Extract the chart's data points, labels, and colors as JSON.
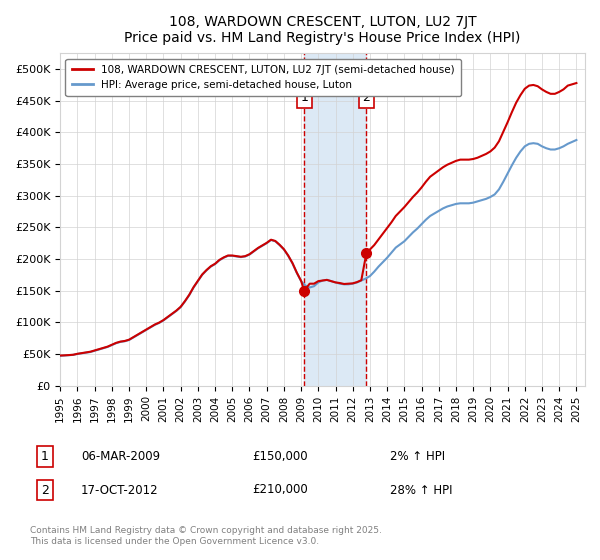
{
  "title": "108, WARDOWN CRESCENT, LUTON, LU2 7JT",
  "subtitle": "Price paid vs. HM Land Registry's House Price Index (HPI)",
  "legend_line1": "108, WARDOWN CRESCENT, LUTON, LU2 7JT (semi-detached house)",
  "legend_line2": "HPI: Average price, semi-detached house, Luton",
  "footer": "Contains HM Land Registry data © Crown copyright and database right 2025.\nThis data is licensed under the Open Government Licence v3.0.",
  "ylabel_ticks": [
    "£0",
    "£50K",
    "£100K",
    "£150K",
    "£200K",
    "£250K",
    "£300K",
    "£350K",
    "£400K",
    "£450K",
    "£500K"
  ],
  "ytick_values": [
    0,
    50000,
    100000,
    150000,
    200000,
    250000,
    300000,
    350000,
    400000,
    450000,
    500000
  ],
  "ylim": [
    0,
    525000
  ],
  "sale1_date": 2009.18,
  "sale1_price": 150000,
  "sale1_label": "1",
  "sale1_annotation": "06-MAR-2009",
  "sale1_price_str": "£150,000",
  "sale1_hpi": "2% ↑ HPI",
  "sale2_date": 2012.8,
  "sale2_price": 210000,
  "sale2_label": "2",
  "sale2_annotation": "17-OCT-2012",
  "sale2_price_str": "£210,000",
  "sale2_hpi": "28% ↑ HPI",
  "color_red": "#cc0000",
  "color_blue": "#6699cc",
  "color_shade": "#dce9f5",
  "xtick_years": [
    "1995",
    "1996",
    "1997",
    "1998",
    "1999",
    "2000",
    "2001",
    "2002",
    "2003",
    "2004",
    "2005",
    "2006",
    "2007",
    "2008",
    "2009",
    "2010",
    "2011",
    "2012",
    "2013",
    "2014",
    "2015",
    "2016",
    "2017",
    "2018",
    "2019",
    "2020",
    "2021",
    "2022",
    "2023",
    "2024",
    "2025"
  ],
  "hpi_years": [
    1995.0,
    1995.25,
    1995.5,
    1995.75,
    1996.0,
    1996.25,
    1996.5,
    1996.75,
    1997.0,
    1997.25,
    1997.5,
    1997.75,
    1998.0,
    1998.25,
    1998.5,
    1998.75,
    1999.0,
    1999.25,
    1999.5,
    1999.75,
    2000.0,
    2000.25,
    2000.5,
    2000.75,
    2001.0,
    2001.25,
    2001.5,
    2001.75,
    2002.0,
    2002.25,
    2002.5,
    2002.75,
    2003.0,
    2003.25,
    2003.5,
    2003.75,
    2004.0,
    2004.25,
    2004.5,
    2004.75,
    2005.0,
    2005.25,
    2005.5,
    2005.75,
    2006.0,
    2006.25,
    2006.5,
    2006.75,
    2007.0,
    2007.25,
    2007.5,
    2007.75,
    2008.0,
    2008.25,
    2008.5,
    2008.75,
    2009.0,
    2009.25,
    2009.5,
    2009.75,
    2010.0,
    2010.25,
    2010.5,
    2010.75,
    2011.0,
    2011.25,
    2011.5,
    2011.75,
    2012.0,
    2012.25,
    2012.5,
    2012.75,
    2013.0,
    2013.25,
    2013.5,
    2013.75,
    2014.0,
    2014.25,
    2014.5,
    2014.75,
    2015.0,
    2015.25,
    2015.5,
    2015.75,
    2016.0,
    2016.25,
    2016.5,
    2016.75,
    2017.0,
    2017.25,
    2017.5,
    2017.75,
    2018.0,
    2018.25,
    2018.5,
    2018.75,
    2019.0,
    2019.25,
    2019.5,
    2019.75,
    2020.0,
    2020.25,
    2020.5,
    2020.75,
    2021.0,
    2021.25,
    2021.5,
    2021.75,
    2022.0,
    2022.25,
    2022.5,
    2022.75,
    2023.0,
    2023.25,
    2023.5,
    2023.75,
    2024.0,
    2024.25,
    2024.5,
    2024.75,
    2025.0
  ],
  "hpi_values": [
    47000,
    47500,
    48000,
    48500,
    50000,
    51000,
    52000,
    53000,
    55000,
    57000,
    59000,
    61000,
    64000,
    67000,
    69000,
    70000,
    72000,
    76000,
    80000,
    84000,
    88000,
    92000,
    96000,
    99000,
    103000,
    108000,
    113000,
    118000,
    124000,
    133000,
    143000,
    155000,
    165000,
    175000,
    182000,
    188000,
    192000,
    198000,
    202000,
    205000,
    205000,
    204000,
    203000,
    204000,
    207000,
    212000,
    217000,
    221000,
    225000,
    230000,
    228000,
    222000,
    215000,
    205000,
    193000,
    178000,
    165000,
    158000,
    155000,
    157000,
    163000,
    166000,
    167000,
    165000,
    163000,
    161000,
    160000,
    160000,
    161000,
    163000,
    166000,
    169000,
    173000,
    180000,
    188000,
    195000,
    202000,
    210000,
    218000,
    223000,
    228000,
    235000,
    242000,
    248000,
    255000,
    262000,
    268000,
    272000,
    276000,
    280000,
    283000,
    285000,
    287000,
    288000,
    288000,
    288000,
    289000,
    291000,
    293000,
    295000,
    298000,
    302000,
    310000,
    322000,
    335000,
    348000,
    360000,
    370000,
    378000,
    382000,
    383000,
    382000,
    378000,
    375000,
    373000,
    373000,
    375000,
    378000,
    382000,
    385000,
    388000
  ],
  "prop_years": [
    1995.0,
    1995.25,
    1995.5,
    1995.75,
    1996.0,
    1996.25,
    1996.5,
    1996.75,
    1997.0,
    1997.25,
    1997.5,
    1997.75,
    1998.0,
    1998.25,
    1998.5,
    1998.75,
    1999.0,
    1999.25,
    1999.5,
    1999.75,
    2000.0,
    2000.25,
    2000.5,
    2000.75,
    2001.0,
    2001.25,
    2001.5,
    2001.75,
    2002.0,
    2002.25,
    2002.5,
    2002.75,
    2003.0,
    2003.25,
    2003.5,
    2003.75,
    2004.0,
    2004.25,
    2004.5,
    2004.75,
    2005.0,
    2005.25,
    2005.5,
    2005.75,
    2006.0,
    2006.25,
    2006.5,
    2006.75,
    2007.0,
    2007.25,
    2007.5,
    2007.75,
    2008.0,
    2008.25,
    2008.5,
    2008.75,
    2009.0,
    2009.18,
    2009.5,
    2009.75,
    2010.0,
    2010.25,
    2010.5,
    2010.75,
    2011.0,
    2011.25,
    2011.5,
    2011.75,
    2012.0,
    2012.25,
    2012.5,
    2012.8,
    2013.0,
    2013.25,
    2013.5,
    2013.75,
    2014.0,
    2014.25,
    2014.5,
    2014.75,
    2015.0,
    2015.25,
    2015.5,
    2015.75,
    2016.0,
    2016.25,
    2016.5,
    2016.75,
    2017.0,
    2017.25,
    2017.5,
    2017.75,
    2018.0,
    2018.25,
    2018.5,
    2018.75,
    2019.0,
    2019.25,
    2019.5,
    2019.75,
    2020.0,
    2020.25,
    2020.5,
    2020.75,
    2021.0,
    2021.25,
    2021.5,
    2021.75,
    2022.0,
    2022.25,
    2022.5,
    2022.75,
    2023.0,
    2023.25,
    2023.5,
    2023.75,
    2024.0,
    2024.25,
    2024.5,
    2025.0
  ],
  "prop_values": [
    47500,
    47800,
    48200,
    48700,
    50200,
    51300,
    52400,
    53500,
    55500,
    57500,
    59500,
    61500,
    64500,
    67500,
    69500,
    70500,
    72500,
    76500,
    80500,
    84500,
    88500,
    92500,
    96500,
    99500,
    103500,
    108500,
    113500,
    118500,
    124500,
    133500,
    143500,
    155500,
    165500,
    175500,
    182500,
    188500,
    192500,
    198500,
    202500,
    205500,
    205500,
    204500,
    203500,
    204500,
    207500,
    212500,
    217500,
    221500,
    225500,
    230500,
    228500,
    222500,
    215500,
    205500,
    193500,
    178500,
    165500,
    150000,
    161000,
    161000,
    165000,
    166000,
    167000,
    165000,
    163000,
    162000,
    160500,
    161000,
    161500,
    163500,
    166500,
    210000,
    215000,
    222000,
    231000,
    240000,
    249000,
    258000,
    268000,
    275000,
    282000,
    290000,
    298000,
    305000,
    313000,
    322000,
    330000,
    335000,
    340000,
    345000,
    349000,
    352000,
    355000,
    357000,
    357000,
    357000,
    358000,
    360000,
    363000,
    366000,
    370000,
    376000,
    386000,
    401000,
    416000,
    432000,
    447000,
    459000,
    469000,
    474000,
    475000,
    473000,
    468000,
    464000,
    461000,
    461000,
    464000,
    468000,
    474000,
    478000
  ]
}
